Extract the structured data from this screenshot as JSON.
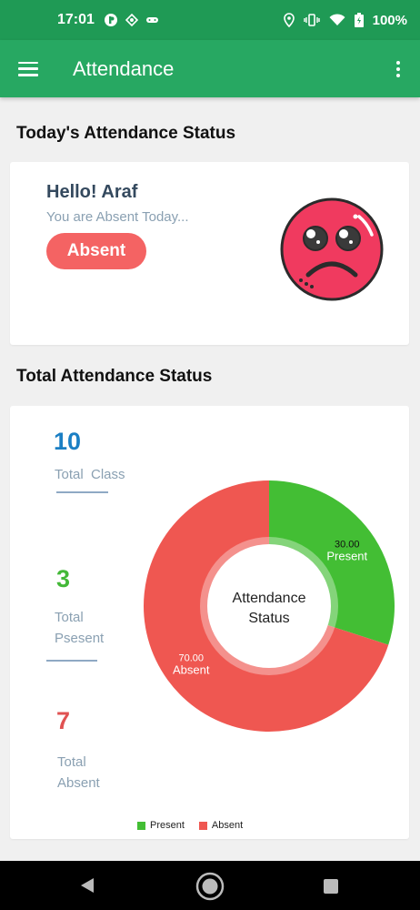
{
  "status_bar": {
    "time": "17:01",
    "battery": "100%",
    "icons": [
      "notification-icon",
      "diamond-icon",
      "gamepad-icon",
      "location-icon",
      "vibrate-icon",
      "wifi-icon",
      "battery-icon"
    ]
  },
  "app_bar": {
    "title": "Attendance",
    "menu_icon": "hamburger-icon",
    "overflow_icon": "more-vert-icon",
    "color": "#27a862"
  },
  "today": {
    "section_title": "Today's Attendance Status",
    "greeting": "Hello! Araf",
    "message": "You are Absent Today...",
    "status_button": "Absent",
    "face_icon": "sad-face-icon",
    "button_color": "#f46363"
  },
  "total": {
    "section_title": "Total Attendance Status",
    "stats": [
      {
        "number": "10",
        "label": "Total  Class",
        "color": "#1b7fc4"
      },
      {
        "number": "3",
        "label_line1": "Total",
        "label_line2": "Psesent",
        "color": "#43b837"
      },
      {
        "number": "7",
        "label_line1": "Total",
        "label_line2": "Absent",
        "color": "#e05252"
      }
    ]
  },
  "chart_data": {
    "type": "pie",
    "center_text_line1": "Attendance",
    "center_text_line2": "Status",
    "categories": [
      "Present",
      "Absent"
    ],
    "values": [
      30.0,
      70.0
    ],
    "value_labels": [
      "30.00",
      "70.00"
    ],
    "colors": [
      "#43be34",
      "#ef5751"
    ],
    "legend_position": "bottom"
  },
  "nav_bar": {
    "buttons": [
      "back-icon",
      "home-icon",
      "recents-icon"
    ]
  }
}
